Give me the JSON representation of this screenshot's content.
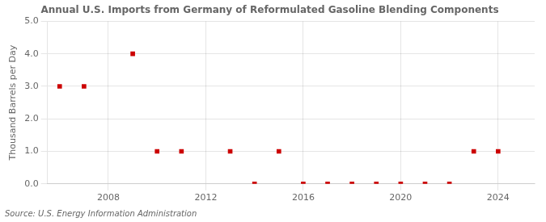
{
  "chart_data": {
    "type": "scatter",
    "title": "Annual U.S. Imports from Germany of Reformulated Gasoline Blending Components",
    "ylabel": "Thousand Barrels per Day",
    "source": "Source: U.S. Energy Information Administration",
    "x": [
      2006,
      2007,
      2009,
      2010,
      2011,
      2013,
      2014,
      2015,
      2016,
      2017,
      2018,
      2019,
      2020,
      2021,
      2022,
      2023,
      2024
    ],
    "values": [
      3.0,
      3.0,
      4.0,
      1.0,
      1.0,
      1.0,
      0.0,
      1.0,
      0.0,
      0.0,
      0.0,
      0.0,
      0.0,
      0.0,
      0.0,
      1.0,
      1.0
    ],
    "color": "#cc0000",
    "marker": "square",
    "xlim": [
      2005.5,
      2025.5
    ],
    "ylim": [
      0.0,
      5.0
    ],
    "xticks": [
      2008,
      2012,
      2016,
      2020,
      2024
    ],
    "yticks": [
      {
        "value": 0.0,
        "label": "0.0"
      },
      {
        "value": 1.0,
        "label": "1.0"
      },
      {
        "value": 2.0,
        "label": "2.0"
      },
      {
        "value": 3.0,
        "label": "3.0"
      },
      {
        "value": 4.0,
        "label": "4.0"
      },
      {
        "value": 5.0,
        "label": "5.0"
      }
    ],
    "grid": true
  }
}
